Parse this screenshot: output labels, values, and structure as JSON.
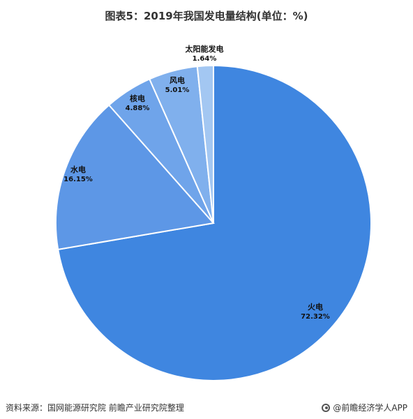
{
  "title": "图表5：2019年我国发电量结构(单位：%)",
  "chart_data": {
    "type": "pie",
    "title": "图表5：2019年我国发电量结构(单位：%)",
    "slices": [
      {
        "label": "火电",
        "value": 72.32,
        "value_label": "72.32%",
        "color": "#3f86e0"
      },
      {
        "label": "水电",
        "value": 16.15,
        "value_label": "16.15%",
        "color": "#5d97e6"
      },
      {
        "label": "核电",
        "value": 4.88,
        "value_label": "4.88%",
        "color": "#6fa4ea"
      },
      {
        "label": "风电",
        "value": 5.01,
        "value_label": "5.01%",
        "color": "#80b0ed"
      },
      {
        "label": "太阳能发电",
        "value": 1.64,
        "value_label": "1.64%",
        "color": "#a3c7f2"
      }
    ],
    "start_angle": "12 o'clock",
    "direction": "clockwise"
  },
  "footer": {
    "source": "资料来源：国网能源研究院 前瞻产业研究院整理",
    "brand": "@前瞻经济学人APP",
    "brand_icon": "qianzhan-logo-icon"
  }
}
